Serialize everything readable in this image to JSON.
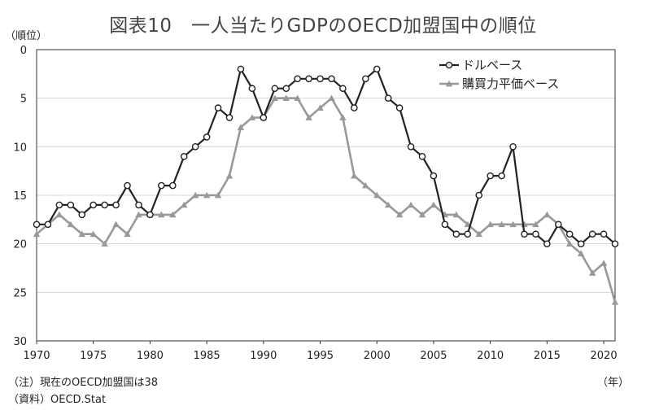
{
  "header": {
    "title": "図表10　一人当たりGDPのOECD加盟国中の順位",
    "unit": "（順位）",
    "year_unit": "（年）"
  },
  "footer": {
    "note": "（注）現在のOECD加盟国は38",
    "source": "（資料）OECD.Stat"
  },
  "chart_data": {
    "type": "line",
    "title": "図表10　一人当たりGDPのOECD加盟国中の順位",
    "ylabel": "（順位）",
    "xlabel": "（年）",
    "ylim": [
      0,
      30
    ],
    "y_inverted": true,
    "y_ticks": [
      0,
      5,
      10,
      15,
      20,
      25,
      30
    ],
    "xlim": [
      1970,
      2021
    ],
    "x_ticks": [
      1970,
      1975,
      1980,
      1985,
      1990,
      1995,
      2000,
      2005,
      2010,
      2015,
      2020
    ],
    "grid": "horizontal",
    "legend_position": "top-right",
    "x": [
      1970,
      1971,
      1972,
      1973,
      1974,
      1975,
      1976,
      1977,
      1978,
      1979,
      1980,
      1981,
      1982,
      1983,
      1984,
      1985,
      1986,
      1987,
      1988,
      1989,
      1990,
      1991,
      1992,
      1993,
      1994,
      1995,
      1996,
      1997,
      1998,
      1999,
      2000,
      2001,
      2002,
      2003,
      2004,
      2005,
      2006,
      2007,
      2008,
      2009,
      2010,
      2011,
      2012,
      2013,
      2014,
      2015,
      2016,
      2017,
      2018,
      2019,
      2020,
      2021
    ],
    "series": [
      {
        "name": "ドルベース",
        "color": "#222222",
        "marker": "circle",
        "values": [
          18,
          18,
          16,
          16,
          17,
          16,
          16,
          16,
          14,
          16,
          17,
          14,
          14,
          11,
          10,
          9,
          6,
          7,
          2,
          4,
          7,
          4,
          4,
          3,
          3,
          3,
          3,
          4,
          6,
          3,
          2,
          5,
          6,
          10,
          11,
          13,
          18,
          19,
          19,
          15,
          13,
          13,
          10,
          19,
          19,
          20,
          18,
          19,
          20,
          19,
          19,
          20
        ]
      },
      {
        "name": "購買力平価ベース",
        "color": "#999999",
        "marker": "triangle",
        "values": [
          19,
          18,
          17,
          18,
          19,
          19,
          20,
          18,
          19,
          17,
          17,
          17,
          17,
          16,
          15,
          15,
          15,
          13,
          8,
          7,
          7,
          5,
          5,
          5,
          7,
          6,
          5,
          7,
          13,
          14,
          15,
          16,
          17,
          16,
          17,
          16,
          17,
          17,
          18,
          19,
          18,
          18,
          18,
          18,
          18,
          17,
          18,
          20,
          21,
          23,
          22,
          26
        ]
      }
    ]
  }
}
